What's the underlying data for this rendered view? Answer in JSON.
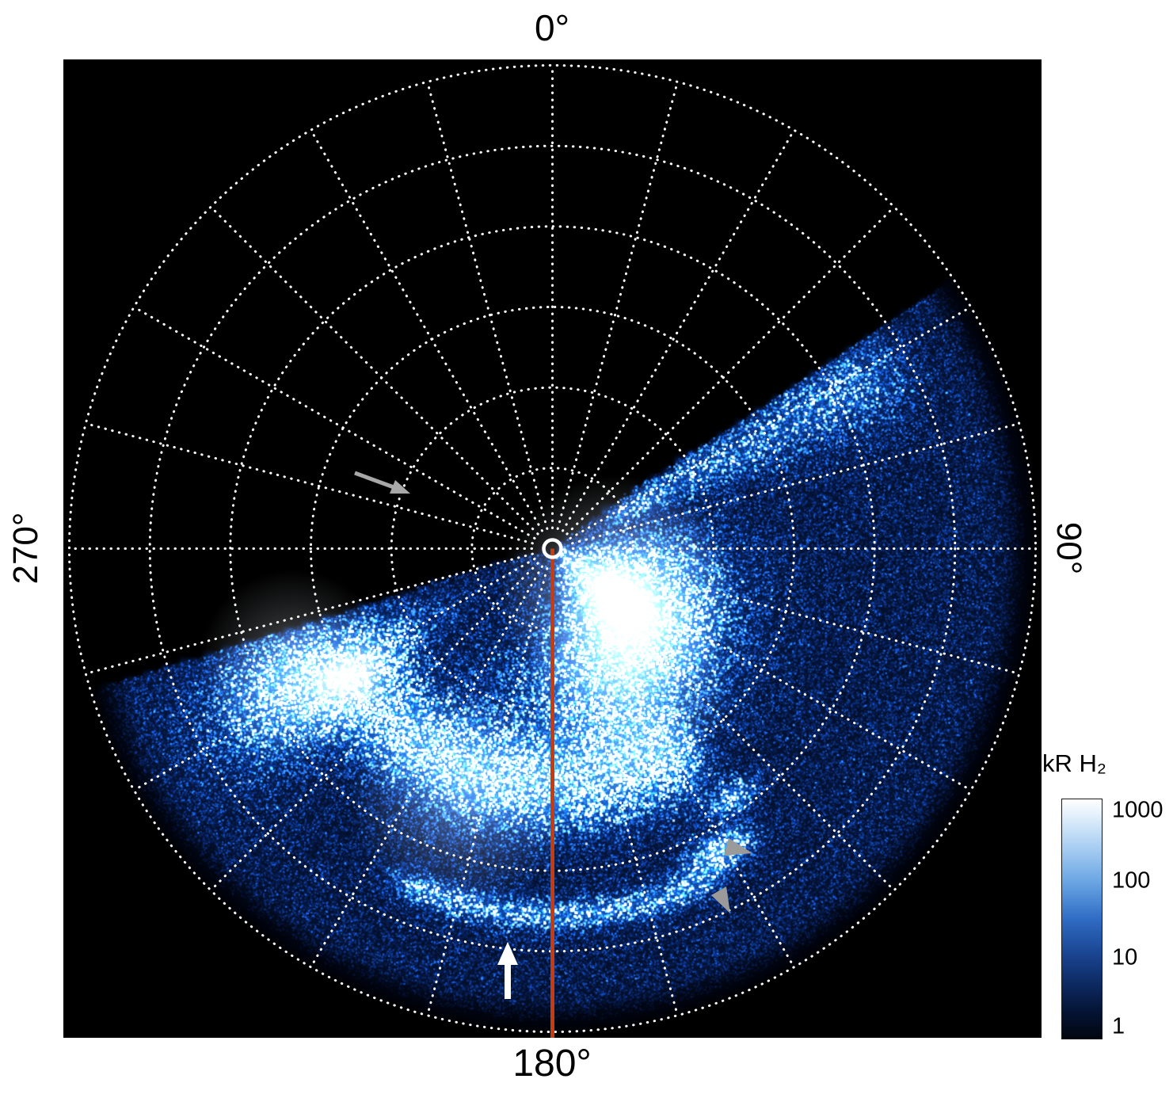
{
  "figure": {
    "angle_labels": {
      "top": "0°",
      "right": "90°",
      "bottom": "180°",
      "left": "270°"
    },
    "colorbar": {
      "title": "kR H₂",
      "ticks": [
        "1000",
        "100",
        "10",
        "1"
      ]
    }
  },
  "chart_data": {
    "type": "heatmap",
    "projection": "polar",
    "title": "",
    "angular_tick_labels": [
      "0°",
      "90°",
      "180°",
      "270°"
    ],
    "angular_tick_positions_deg": [
      0,
      90,
      180,
      270
    ],
    "grid": {
      "style": "dotted",
      "color": "#ffffff",
      "ring_count": 6,
      "spoke_step_deg": 15
    },
    "colorbar": {
      "label": "kR H₂",
      "scale": "log",
      "min": 1,
      "max": 1000,
      "tick_values": [
        1000,
        100,
        10,
        1
      ]
    },
    "emission": {
      "species": "H₂",
      "units": "kR",
      "sector_deg": [
        56,
        253
      ],
      "max_kR": 1000
    },
    "meridian_line": {
      "angle_deg": 180,
      "color": "#c63b10"
    },
    "pole_marker": {
      "color": "#ffffff"
    },
    "annotations": [
      {
        "id": "gray-arrow-upper-left",
        "shape": "arrow",
        "color": "#a8a8a8"
      },
      {
        "id": "white-arrow-bottom",
        "shape": "arrow",
        "color": "#ffffff"
      },
      {
        "id": "gray-arrowhead-right",
        "shape": "triangle",
        "color": "#9a9a9a"
      },
      {
        "id": "gray-arrowhead-lower",
        "shape": "triangle",
        "color": "#9a9a9a"
      }
    ]
  }
}
